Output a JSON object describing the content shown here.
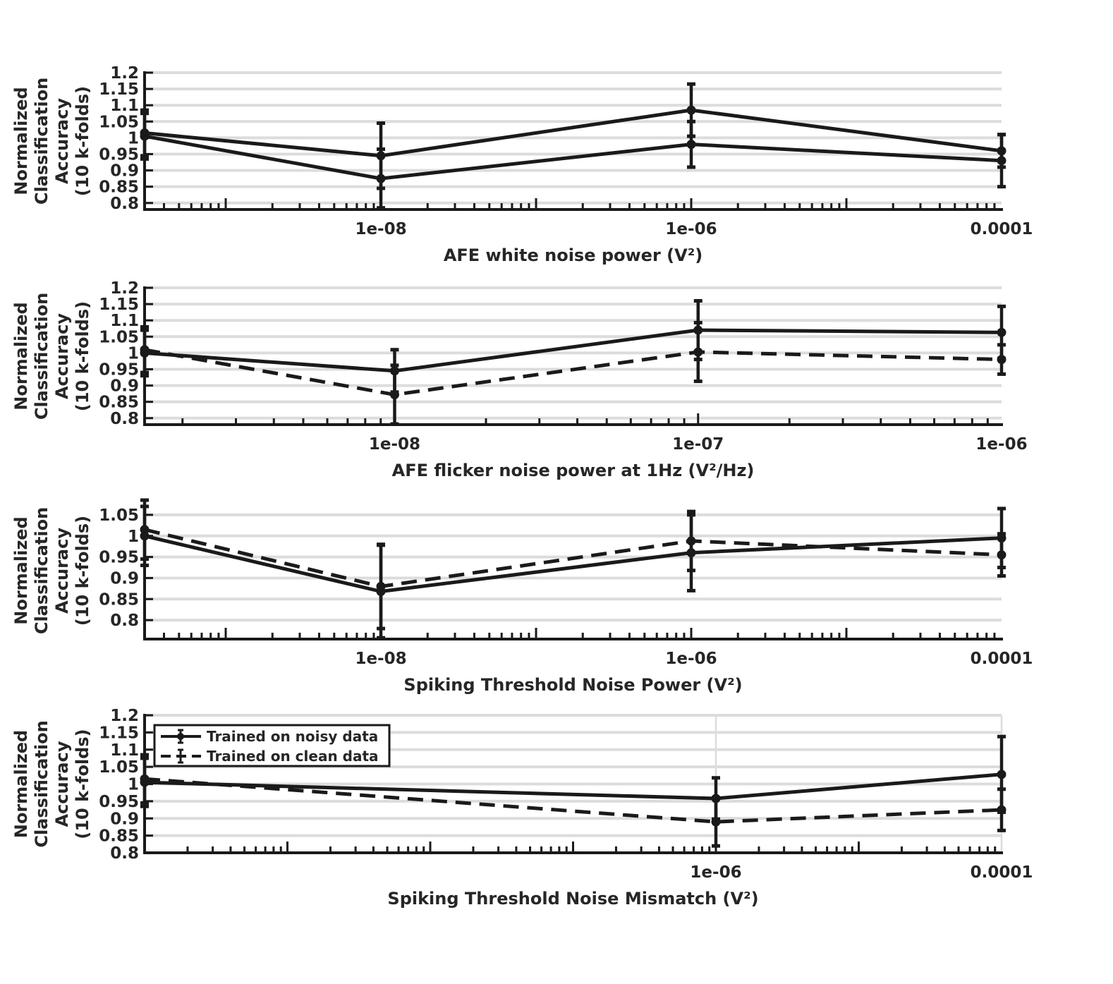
{
  "chart_data": [
    {
      "type": "line",
      "xscale": "log",
      "xlim": [
        3e-10,
        0.0001
      ],
      "ylim": [
        0.78,
        1.2
      ],
      "xticks": [
        "1e-08",
        "1e-06",
        "0.0001"
      ],
      "yticks": [
        "0.8",
        "0.85",
        "0.9",
        "0.95",
        "1",
        "1.05",
        "1.1",
        "1.15",
        "1.2"
      ],
      "xlabel": "AFE white noise power (V²)",
      "ylabel": [
        "Normalized",
        "Classification",
        "Accuracy",
        "(10 k-folds)"
      ],
      "grid": true,
      "series": [
        {
          "name": "Trained on noisy data",
          "style": "solid",
          "x": [
            3e-10,
            1e-08,
            1e-06,
            0.0001
          ],
          "y": [
            1.015,
            0.945,
            1.085,
            0.96
          ],
          "err": [
            0.07,
            0.1,
            0.08,
            0.05
          ]
        },
        {
          "name": "Trained on clean data",
          "style": "solid",
          "x": [
            3e-10,
            1e-08,
            1e-06,
            0.0001
          ],
          "y": [
            1.005,
            0.875,
            0.98,
            0.93
          ],
          "err": [
            0.07,
            0.09,
            0.07,
            0.08
          ]
        }
      ]
    },
    {
      "type": "line",
      "xscale": "log",
      "xlim": [
        1.5e-09,
        1e-06
      ],
      "ylim": [
        0.78,
        1.2
      ],
      "xticks": [
        "1e-08",
        "1e-07",
        "1e-06"
      ],
      "yticks": [
        "0.8",
        "0.85",
        "0.9",
        "0.95",
        "1",
        "1.05",
        "1.1",
        "1.15",
        "1.2"
      ],
      "xlabel": "AFE flicker noise power at 1Hz (V²/Hz)",
      "ylabel": [
        "Normalized",
        "Classification",
        "Accuracy",
        "(10 k-folds)"
      ],
      "grid": true,
      "series": [
        {
          "name": "Trained on noisy data",
          "style": "solid",
          "x": [
            1.5e-09,
            1e-08,
            1e-07,
            1e-06
          ],
          "y": [
            1.0,
            0.945,
            1.07,
            1.063
          ],
          "err": [
            0.07,
            0.065,
            0.09,
            0.08
          ]
        },
        {
          "name": "Trained on clean data",
          "style": "dashed",
          "x": [
            1.5e-09,
            1e-08,
            1e-07,
            1e-06
          ],
          "y": [
            1.01,
            0.872,
            1.003,
            0.98
          ],
          "err": [
            0.07,
            0.09,
            0.09,
            0.045
          ]
        }
      ]
    },
    {
      "type": "line",
      "xscale": "log",
      "xlim": [
        3e-10,
        0.0001
      ],
      "ylim": [
        0.755,
        1.08
      ],
      "xticks": [
        "1e-08",
        "1e-06",
        "0.0001"
      ],
      "yticks": [
        "0.8",
        "0.85",
        "0.9",
        "0.95",
        "1",
        "1.05"
      ],
      "xlabel": "Spiking Threshold Noise Power (V²)",
      "ylabel": [
        "Normalized",
        "Classification",
        "Accuracy",
        "(10 k-folds)"
      ],
      "grid": true,
      "series": [
        {
          "name": "Trained on noisy data",
          "style": "solid",
          "x": [
            3e-10,
            1e-08,
            1e-06,
            0.0001
          ],
          "y": [
            1.0,
            0.868,
            0.96,
            0.995
          ],
          "err": [
            0.07,
            0.11,
            0.09,
            0.07
          ]
        },
        {
          "name": "Trained on clean data",
          "style": "dashed",
          "x": [
            3e-10,
            1e-08,
            1e-06,
            0.0001
          ],
          "y": [
            1.015,
            0.88,
            0.988,
            0.955
          ],
          "err": [
            0.07,
            0.1,
            0.07,
            0.05
          ]
        }
      ]
    },
    {
      "type": "line",
      "xscale": "log",
      "xlim": [
        1e-10,
        0.0001
      ],
      "ylim": [
        0.8,
        1.2
      ],
      "xticks": [
        "1e-06",
        "0.0001"
      ],
      "yticks": [
        "0.8",
        "0.85",
        "0.9",
        "0.95",
        "1",
        "1.05",
        "1.1",
        "1.15",
        "1.2"
      ],
      "xlabel": "Spiking Threshold Noise Mismatch (V²)",
      "ylabel": [
        "Normalized",
        "Classification",
        "Accuracy",
        "(10 k-folds)"
      ],
      "grid": true,
      "legend_position": "top-left",
      "series": [
        {
          "name": "Trained on noisy data",
          "style": "solid",
          "x": [
            1e-10,
            1e-06,
            0.0001
          ],
          "y": [
            1.005,
            0.958,
            1.028
          ],
          "err": [
            0.07,
            0.06,
            0.11
          ]
        },
        {
          "name": "Trained on clean data",
          "style": "dashed",
          "x": [
            1e-10,
            1e-06,
            0.0001
          ],
          "y": [
            1.015,
            0.89,
            0.925
          ],
          "err": [
            0.07,
            0.07,
            0.06
          ]
        }
      ]
    }
  ]
}
